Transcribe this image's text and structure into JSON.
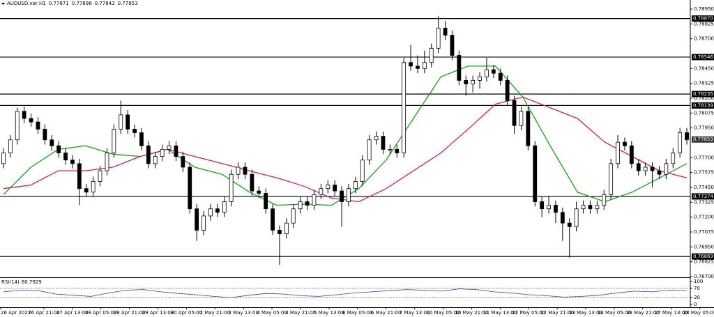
{
  "chart_data": {
    "type": "candlestick",
    "title": "AUDUSD.var,H1",
    "quote": [
      0.77871,
      0.77898,
      0.77843,
      0.77853
    ],
    "up_color": "#ffffff",
    "down_color": "#000000",
    "open": [
      0.7765,
      0.7774,
      0.7785,
      0.7809,
      0.7803,
      0.78,
      0.7794,
      0.7785,
      0.778,
      0.7774,
      0.7768,
      0.7765,
      0.7744,
      0.7741,
      0.775,
      0.7759,
      0.7774,
      0.7794,
      0.7806,
      0.7794,
      0.7791,
      0.778,
      0.7765,
      0.7771,
      0.7777,
      0.778,
      0.7771,
      0.7762,
      0.7727,
      0.7709,
      0.7721,
      0.7727,
      0.7724,
      0.7733,
      0.7756,
      0.7762,
      0.7756,
      0.7742,
      0.774,
      0.7727,
      0.7709,
      0.7706,
      0.7715,
      0.7727,
      0.7733,
      0.773,
      0.7739,
      0.7744,
      0.7747,
      0.7742,
      0.7733,
      0.7744,
      0.775,
      0.7768,
      0.7785,
      0.7788,
      0.7777,
      0.7777,
      0.7774,
      0.785,
      0.7847,
      0.7845,
      0.785,
      0.7862,
      0.7879,
      0.7873,
      0.7856,
      0.7835,
      0.7832,
      0.7835,
      0.7838,
      0.7844,
      0.7841,
      0.7835,
      0.7818,
      0.7797,
      0.7809,
      0.778,
      0.7733,
      0.7727,
      0.773,
      0.7724,
      0.7715,
      0.7712,
      0.7727,
      0.773,
      0.7727,
      0.773,
      0.7739,
      0.7765,
      0.7783,
      0.778,
      0.7765,
      0.7759,
      0.7762,
      0.7759,
      0.7756,
      0.7765,
      0.7774,
      0.7791
    ],
    "high": [
      0.7778,
      0.7789,
      0.7812,
      0.7813,
      0.7807,
      0.7804,
      0.7798,
      0.7789,
      0.7784,
      0.7778,
      0.7772,
      0.7769,
      0.7748,
      0.7754,
      0.7763,
      0.7778,
      0.7798,
      0.7818,
      0.781,
      0.7798,
      0.7795,
      0.7784,
      0.7775,
      0.7781,
      0.7784,
      0.7784,
      0.7775,
      0.7766,
      0.7731,
      0.7725,
      0.7731,
      0.7731,
      0.7737,
      0.776,
      0.7766,
      0.7766,
      0.776,
      0.7746,
      0.7744,
      0.7731,
      0.7713,
      0.7719,
      0.7731,
      0.7737,
      0.7737,
      0.7743,
      0.7748,
      0.7751,
      0.7751,
      0.7746,
      0.7748,
      0.7754,
      0.7772,
      0.7789,
      0.7792,
      0.7792,
      0.7781,
      0.7781,
      0.7854,
      0.7865,
      0.7856,
      0.786,
      0.7866,
      0.7889,
      0.7885,
      0.7877,
      0.786,
      0.7839,
      0.7839,
      0.7842,
      0.7854,
      0.7848,
      0.7845,
      0.7839,
      0.7822,
      0.7813,
      0.7813,
      0.7784,
      0.7737,
      0.7738,
      0.7734,
      0.7728,
      0.7719,
      0.7733,
      0.7734,
      0.7734,
      0.7734,
      0.7743,
      0.7769,
      0.7789,
      0.7787,
      0.7784,
      0.7769,
      0.7766,
      0.7766,
      0.7763,
      0.7769,
      0.7778,
      0.7795,
      0.7795
    ],
    "low": [
      0.7761,
      0.777,
      0.7781,
      0.7799,
      0.7796,
      0.779,
      0.7781,
      0.7776,
      0.777,
      0.7764,
      0.7761,
      0.773,
      0.7737,
      0.7737,
      0.7746,
      0.7755,
      0.777,
      0.779,
      0.779,
      0.7787,
      0.7776,
      0.7761,
      0.7761,
      0.7767,
      0.7773,
      0.7767,
      0.7758,
      0.7723,
      0.77,
      0.7705,
      0.7717,
      0.772,
      0.772,
      0.7729,
      0.7752,
      0.7752,
      0.7738,
      0.7736,
      0.7723,
      0.7705,
      0.768,
      0.7702,
      0.7711,
      0.7723,
      0.7726,
      0.7726,
      0.7735,
      0.774,
      0.7738,
      0.7712,
      0.7729,
      0.774,
      0.7746,
      0.7764,
      0.7781,
      0.7773,
      0.7773,
      0.777,
      0.777,
      0.7843,
      0.7841,
      0.7841,
      0.7846,
      0.7858,
      0.7869,
      0.7852,
      0.7831,
      0.7822,
      0.7825,
      0.7828,
      0.7834,
      0.7837,
      0.7831,
      0.7814,
      0.779,
      0.7793,
      0.7776,
      0.7729,
      0.772,
      0.7723,
      0.7715,
      0.77,
      0.7686,
      0.7708,
      0.7723,
      0.7723,
      0.7723,
      0.7726,
      0.7735,
      0.7761,
      0.7776,
      0.7761,
      0.7755,
      0.7755,
      0.7745,
      0.7752,
      0.7752,
      0.7761,
      0.777,
      0.7781
    ],
    "close": [
      0.7774,
      0.7785,
      0.7809,
      0.7803,
      0.78,
      0.7794,
      0.7785,
      0.778,
      0.7774,
      0.7768,
      0.7765,
      0.7744,
      0.7741,
      0.775,
      0.7759,
      0.7774,
      0.7794,
      0.7806,
      0.7794,
      0.7791,
      0.778,
      0.7765,
      0.7771,
      0.7777,
      0.778,
      0.7771,
      0.7762,
      0.7727,
      0.7709,
      0.7721,
      0.7727,
      0.7724,
      0.7733,
      0.7756,
      0.7762,
      0.7756,
      0.7742,
      0.774,
      0.7727,
      0.7709,
      0.7706,
      0.7715,
      0.7727,
      0.7733,
      0.773,
      0.7739,
      0.7744,
      0.7747,
      0.7742,
      0.7733,
      0.7744,
      0.775,
      0.7768,
      0.7785,
      0.7788,
      0.7777,
      0.7777,
      0.7774,
      0.785,
      0.7847,
      0.7845,
      0.785,
      0.7862,
      0.7879,
      0.7873,
      0.7856,
      0.7835,
      0.7832,
      0.7835,
      0.7838,
      0.7844,
      0.7841,
      0.7835,
      0.7818,
      0.7797,
      0.7809,
      0.778,
      0.7733,
      0.7727,
      0.773,
      0.7724,
      0.7715,
      0.7712,
      0.7727,
      0.773,
      0.7727,
      0.773,
      0.7739,
      0.7765,
      0.7783,
      0.778,
      0.7765,
      0.7759,
      0.7762,
      0.7759,
      0.7756,
      0.7765,
      0.7774,
      0.7791,
      0.7785
    ],
    "overlays": [
      {
        "color": "#1aa01a",
        "values": [
          0.7739,
          0.7762,
          0.7777,
          0.778,
          0.7773,
          0.7771,
          0.7777,
          0.7762,
          0.7756,
          0.7741,
          0.773,
          0.7731,
          0.773,
          0.7744,
          0.7768,
          0.7803,
          0.7838,
          0.7847,
          0.7847,
          0.7821,
          0.778,
          0.7741,
          0.7733,
          0.7741,
          0.7753,
          0.7765
        ]
      },
      {
        "color": "#d81e4e",
        "values": [
          0.7744,
          0.7747,
          0.7759,
          0.7759,
          0.7762,
          0.7771,
          0.7777,
          0.7771,
          0.7765,
          0.7759,
          0.7753,
          0.7746,
          0.7736,
          0.7733,
          0.7744,
          0.7759,
          0.7774,
          0.7794,
          0.7815,
          0.7821,
          0.7812,
          0.7803,
          0.7783,
          0.7771,
          0.7759,
          0.7753
        ]
      }
    ],
    "levels": [
      {
        "value": 0.7887,
        "label": "0.78870"
      },
      {
        "value": 0.78546,
        "label": "0.78546"
      },
      {
        "value": 0.78235,
        "label": "0.78235"
      },
      {
        "value": 0.78139,
        "label": "0.78139"
      },
      {
        "value": 0.77374,
        "label": "0.77374"
      },
      {
        "value": 0.76869,
        "label": "0.76869"
      }
    ],
    "current_price": 0.77853,
    "ylim": [
      0.76694,
      0.79026
    ],
    "yticks": [
      {
        "value": 0.7895,
        "label": "0.78950"
      },
      0.78825,
      {
        "value": 0.787,
        "label": "0.78700"
      },
      {
        "value": 0.7845,
        "label": "0.78450"
      },
      0.78325,
      {
        "value": 0.782,
        "label": "0.78200"
      },
      0.78075,
      {
        "value": 0.7795,
        "label": "0.77950"
      },
      {
        "value": 0.777,
        "label": "0.77700"
      },
      0.77575,
      {
        "value": 0.7745,
        "label": "0.77450"
      },
      0.77325,
      {
        "value": 0.772,
        "label": "0.77200"
      },
      0.77075,
      {
        "value": 0.7695,
        "label": "0.76950"
      },
      0.76825,
      {
        "value": 0.767,
        "label": "0.76700"
      }
    ],
    "x_tick_labels": [
      "26 Apr 2021",
      "26 Apr 21:00",
      "27 Apr 13:00",
      "28 Apr 05:00",
      "28 Apr 21:00",
      "29 Apr 13:00",
      "30 Apr 05:00",
      "2 May 21:00",
      "3 May 13:00",
      "4 May 05:00",
      "4 May 21:00",
      "5 May 13:00",
      "6 May 05:00",
      "6 May 21:00",
      "7 May 13:00",
      "10 May 05:00",
      "10 May 21:00",
      "11 May 13:00",
      "12 May 05:00",
      "12 May 21:00",
      "13 May 13:00",
      "14 May 05:00",
      "16 May 21:00",
      "17 May 13:00",
      "18 May 05:00"
    ],
    "rsi": {
      "title": "RSI(14)",
      "value": 60.7929,
      "color": "#3a3aa0",
      "ylim": [
        0,
        100
      ],
      "yticks": [
        0,
        30,
        70,
        100
      ],
      "grid_ticks": [
        30,
        70
      ],
      "values": [
        55,
        62,
        60,
        45,
        40,
        35,
        50,
        62,
        65,
        55,
        48,
        42,
        35,
        30,
        40,
        48,
        45,
        38,
        35,
        42,
        50,
        55,
        60,
        65,
        62,
        58,
        68,
        65,
        55,
        50,
        42,
        38,
        32,
        35,
        40,
        50,
        58,
        55,
        62,
        61
      ]
    }
  }
}
